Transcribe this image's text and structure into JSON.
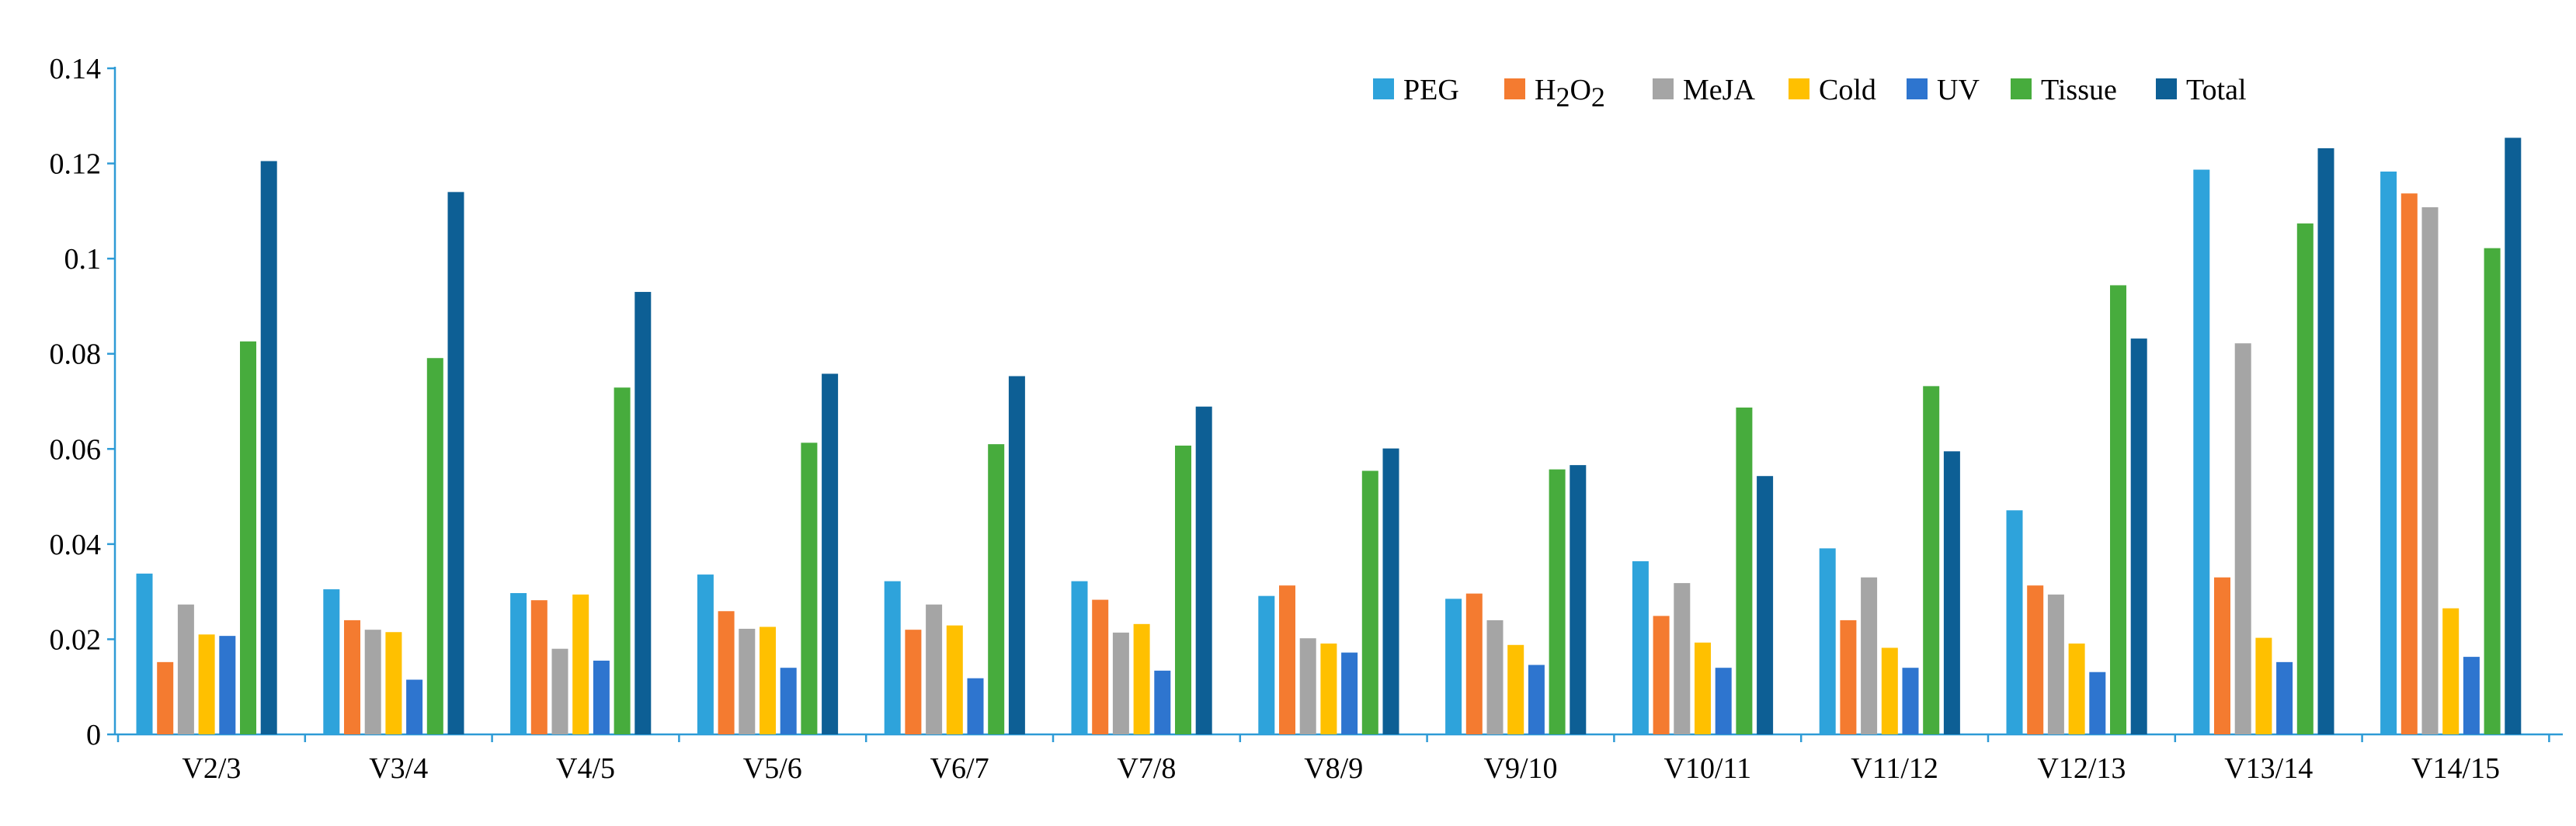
{
  "chart_data": {
    "type": "bar",
    "title": "",
    "xlabel": "",
    "ylabel": "",
    "ylim": [
      0,
      0.14
    ],
    "yticks": [
      "0",
      "0.02",
      "0.04",
      "0.06",
      "0.08",
      "0.1",
      "0.12",
      "0.14"
    ],
    "categories": [
      "V2/3",
      "V3/4",
      "V4/5",
      "V5/6",
      "V6/7",
      "V7/8",
      "V8/9",
      "V9/10",
      "V10/11",
      "V11/12",
      "V12/13",
      "V13/14",
      "V14/15"
    ],
    "legend_position": "top-right",
    "series": [
      {
        "name": "PEG",
        "color": "#2ea3db",
        "values": [
          0.0338,
          0.0305,
          0.0297,
          0.0336,
          0.0322,
          0.0322,
          0.0291,
          0.0285,
          0.0364,
          0.0391,
          0.0471,
          0.1187,
          0.1183
        ]
      },
      {
        "name": "H2O2",
        "name_parts": {
          "base": "H",
          "sub1": "2",
          "mid": "O",
          "sub2": "2"
        },
        "color": "#f47b30",
        "values": [
          0.0152,
          0.024,
          0.0282,
          0.0259,
          0.022,
          0.0283,
          0.0313,
          0.0296,
          0.0249,
          0.024,
          0.0313,
          0.033,
          0.1137
        ]
      },
      {
        "name": "MeJA",
        "color": "#a5a5a5",
        "values": [
          0.0273,
          0.022,
          0.018,
          0.0222,
          0.0273,
          0.0214,
          0.0202,
          0.024,
          0.0318,
          0.033,
          0.0294,
          0.0822,
          0.1108
        ]
      },
      {
        "name": "Cold",
        "color": "#ffc000",
        "values": [
          0.021,
          0.0215,
          0.0294,
          0.0226,
          0.0229,
          0.0232,
          0.0191,
          0.0188,
          0.0193,
          0.0182,
          0.0191,
          0.0203,
          0.0265
        ]
      },
      {
        "name": "UV",
        "color": "#2e75cf",
        "values": [
          0.0207,
          0.0115,
          0.0155,
          0.014,
          0.0118,
          0.0134,
          0.0172,
          0.0146,
          0.014,
          0.014,
          0.0131,
          0.0152,
          0.0163
        ]
      },
      {
        "name": "Tissue",
        "color": "#47ac3d",
        "values": [
          0.0826,
          0.0791,
          0.0729,
          0.0613,
          0.061,
          0.0607,
          0.0554,
          0.0557,
          0.0687,
          0.0732,
          0.0944,
          0.1074,
          0.1022
        ]
      },
      {
        "name": "Total",
        "color": "#0d5f95",
        "values": [
          0.1205,
          0.114,
          0.093,
          0.0758,
          0.0753,
          0.0689,
          0.0601,
          0.0566,
          0.0543,
          0.0595,
          0.0832,
          0.1232,
          0.1254
        ]
      }
    ]
  }
}
